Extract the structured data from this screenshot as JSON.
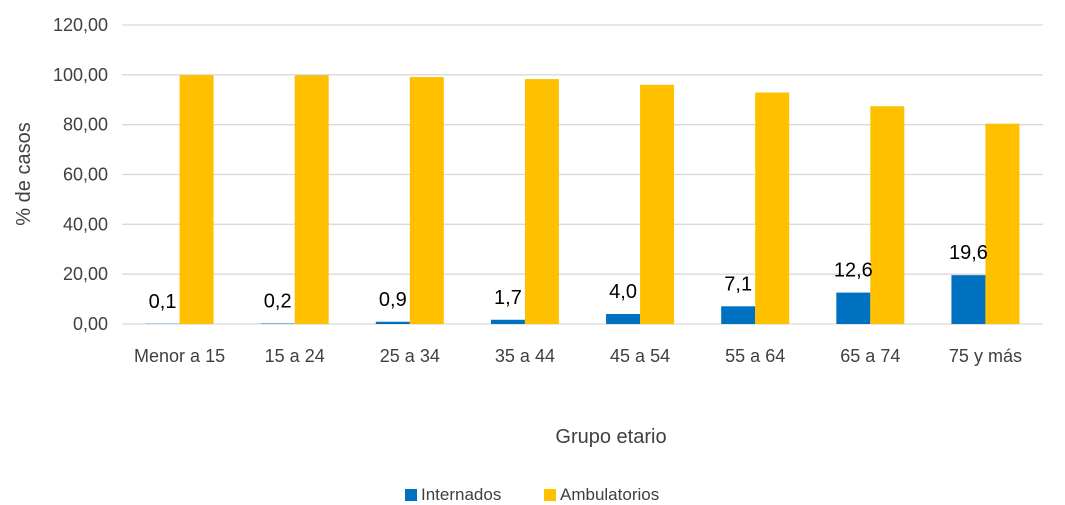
{
  "chart_data": {
    "type": "bar",
    "title": "",
    "xlabel": "Grupo etario",
    "ylabel": "% de casos",
    "ylim": [
      0,
      120
    ],
    "y_ticks": [
      "0,00",
      "20,00",
      "40,00",
      "60,00",
      "80,00",
      "100,00",
      "120,00"
    ],
    "y_tick_values": [
      0,
      20,
      40,
      60,
      80,
      100,
      120
    ],
    "grid": true,
    "legend_position": "bottom",
    "categories": [
      "Menor a 15",
      "15 a 24",
      "25 a 34",
      "35 a 44",
      "45 a 54",
      "55 a 64",
      "65 a 74",
      "75 y más"
    ],
    "series": [
      {
        "name": "Internados",
        "color": "#0070C0",
        "values": [
          0.1,
          0.2,
          0.9,
          1.7,
          4.0,
          7.1,
          12.6,
          19.6
        ],
        "data_labels": [
          "0,1",
          "0,2",
          "0,9",
          "1,7",
          "4,0",
          "7,1",
          "12,6",
          "19,6"
        ]
      },
      {
        "name": "Ambulatorios",
        "color": "#FFC000",
        "values": [
          99.9,
          99.8,
          99.1,
          98.3,
          96.0,
          92.9,
          87.4,
          80.4
        ]
      }
    ]
  }
}
